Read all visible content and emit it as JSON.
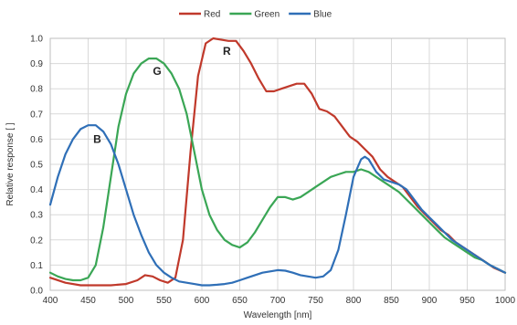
{
  "chart_data": {
    "type": "line",
    "title": "",
    "xlabel": "Wavelength [nm]",
    "ylabel": "Relative response [ ]",
    "xlim": [
      400,
      1000
    ],
    "ylim": [
      0,
      1.0
    ],
    "xticks": [
      "400",
      "450",
      "500",
      "550",
      "600",
      "650",
      "700",
      "750",
      "800",
      "850",
      "900",
      "950",
      "1000"
    ],
    "yticks": [
      "0.0",
      "0.1",
      "0.2",
      "0.3",
      "0.4",
      "0.5",
      "0.6",
      "0.7",
      "0.8",
      "0.9",
      "1.0"
    ],
    "grid": true,
    "legend_position": "top-center",
    "series": [
      {
        "name": "Red",
        "color": "#c0392b",
        "points": [
          [
            400,
            0.05
          ],
          [
            420,
            0.03
          ],
          [
            440,
            0.02
          ],
          [
            460,
            0.02
          ],
          [
            480,
            0.02
          ],
          [
            500,
            0.025
          ],
          [
            515,
            0.04
          ],
          [
            525,
            0.06
          ],
          [
            535,
            0.055
          ],
          [
            545,
            0.04
          ],
          [
            555,
            0.03
          ],
          [
            565,
            0.05
          ],
          [
            575,
            0.2
          ],
          [
            585,
            0.55
          ],
          [
            595,
            0.85
          ],
          [
            605,
            0.98
          ],
          [
            615,
            1.0
          ],
          [
            625,
            0.995
          ],
          [
            635,
            0.99
          ],
          [
            645,
            0.99
          ],
          [
            655,
            0.95
          ],
          [
            665,
            0.9
          ],
          [
            675,
            0.84
          ],
          [
            685,
            0.79
          ],
          [
            695,
            0.79
          ],
          [
            705,
            0.8
          ],
          [
            715,
            0.81
          ],
          [
            725,
            0.82
          ],
          [
            735,
            0.82
          ],
          [
            745,
            0.78
          ],
          [
            755,
            0.72
          ],
          [
            765,
            0.71
          ],
          [
            775,
            0.69
          ],
          [
            785,
            0.65
          ],
          [
            795,
            0.61
          ],
          [
            805,
            0.59
          ],
          [
            815,
            0.56
          ],
          [
            825,
            0.53
          ],
          [
            835,
            0.48
          ],
          [
            845,
            0.45
          ],
          [
            855,
            0.43
          ],
          [
            865,
            0.41
          ],
          [
            875,
            0.37
          ],
          [
            885,
            0.33
          ],
          [
            895,
            0.3
          ],
          [
            905,
            0.27
          ],
          [
            915,
            0.24
          ],
          [
            925,
            0.22
          ],
          [
            935,
            0.19
          ],
          [
            945,
            0.17
          ],
          [
            955,
            0.15
          ],
          [
            965,
            0.13
          ],
          [
            975,
            0.11
          ],
          [
            985,
            0.09
          ],
          [
            1000,
            0.07
          ]
        ]
      },
      {
        "name": "Green",
        "color": "#3aa655",
        "points": [
          [
            400,
            0.07
          ],
          [
            410,
            0.055
          ],
          [
            420,
            0.045
          ],
          [
            430,
            0.04
          ],
          [
            440,
            0.04
          ],
          [
            450,
            0.05
          ],
          [
            460,
            0.1
          ],
          [
            470,
            0.25
          ],
          [
            480,
            0.45
          ],
          [
            490,
            0.65
          ],
          [
            500,
            0.78
          ],
          [
            510,
            0.86
          ],
          [
            520,
            0.9
          ],
          [
            530,
            0.92
          ],
          [
            540,
            0.92
          ],
          [
            550,
            0.9
          ],
          [
            560,
            0.86
          ],
          [
            570,
            0.8
          ],
          [
            580,
            0.7
          ],
          [
            590,
            0.55
          ],
          [
            600,
            0.4
          ],
          [
            610,
            0.3
          ],
          [
            620,
            0.24
          ],
          [
            630,
            0.2
          ],
          [
            640,
            0.18
          ],
          [
            650,
            0.17
          ],
          [
            660,
            0.19
          ],
          [
            670,
            0.23
          ],
          [
            680,
            0.28
          ],
          [
            690,
            0.33
          ],
          [
            700,
            0.37
          ],
          [
            710,
            0.37
          ],
          [
            720,
            0.36
          ],
          [
            730,
            0.37
          ],
          [
            740,
            0.39
          ],
          [
            750,
            0.41
          ],
          [
            760,
            0.43
          ],
          [
            770,
            0.45
          ],
          [
            780,
            0.46
          ],
          [
            790,
            0.47
          ],
          [
            800,
            0.47
          ],
          [
            810,
            0.48
          ],
          [
            820,
            0.47
          ],
          [
            830,
            0.45
          ],
          [
            840,
            0.43
          ],
          [
            850,
            0.41
          ],
          [
            860,
            0.39
          ],
          [
            870,
            0.36
          ],
          [
            880,
            0.33
          ],
          [
            890,
            0.3
          ],
          [
            900,
            0.27
          ],
          [
            910,
            0.24
          ],
          [
            920,
            0.21
          ],
          [
            930,
            0.19
          ],
          [
            940,
            0.17
          ],
          [
            950,
            0.15
          ],
          [
            960,
            0.13
          ],
          [
            970,
            0.12
          ],
          [
            980,
            0.1
          ],
          [
            990,
            0.085
          ],
          [
            1000,
            0.07
          ]
        ]
      },
      {
        "name": "Blue",
        "color": "#2f6fb7",
        "points": [
          [
            400,
            0.34
          ],
          [
            410,
            0.45
          ],
          [
            420,
            0.54
          ],
          [
            430,
            0.6
          ],
          [
            440,
            0.64
          ],
          [
            450,
            0.655
          ],
          [
            460,
            0.655
          ],
          [
            470,
            0.63
          ],
          [
            480,
            0.58
          ],
          [
            490,
            0.5
          ],
          [
            500,
            0.4
          ],
          [
            510,
            0.3
          ],
          [
            520,
            0.22
          ],
          [
            530,
            0.15
          ],
          [
            540,
            0.1
          ],
          [
            550,
            0.07
          ],
          [
            560,
            0.05
          ],
          [
            570,
            0.035
          ],
          [
            580,
            0.03
          ],
          [
            590,
            0.025
          ],
          [
            600,
            0.02
          ],
          [
            610,
            0.02
          ],
          [
            620,
            0.022
          ],
          [
            630,
            0.025
          ],
          [
            640,
            0.03
          ],
          [
            650,
            0.04
          ],
          [
            660,
            0.05
          ],
          [
            670,
            0.06
          ],
          [
            680,
            0.07
          ],
          [
            690,
            0.075
          ],
          [
            700,
            0.08
          ],
          [
            710,
            0.078
          ],
          [
            720,
            0.07
          ],
          [
            730,
            0.06
          ],
          [
            740,
            0.055
          ],
          [
            750,
            0.05
          ],
          [
            760,
            0.055
          ],
          [
            770,
            0.08
          ],
          [
            780,
            0.16
          ],
          [
            790,
            0.3
          ],
          [
            800,
            0.45
          ],
          [
            810,
            0.52
          ],
          [
            815,
            0.53
          ],
          [
            820,
            0.52
          ],
          [
            830,
            0.47
          ],
          [
            840,
            0.44
          ],
          [
            850,
            0.43
          ],
          [
            860,
            0.42
          ],
          [
            870,
            0.4
          ],
          [
            880,
            0.36
          ],
          [
            890,
            0.32
          ],
          [
            900,
            0.29
          ],
          [
            910,
            0.26
          ],
          [
            920,
            0.23
          ],
          [
            930,
            0.2
          ],
          [
            940,
            0.18
          ],
          [
            950,
            0.16
          ],
          [
            960,
            0.14
          ],
          [
            970,
            0.12
          ],
          [
            980,
            0.1
          ],
          [
            990,
            0.085
          ],
          [
            1000,
            0.07
          ]
        ]
      }
    ],
    "annotations": [
      {
        "text": "B",
        "x": 462,
        "y": 0.6
      },
      {
        "text": "G",
        "x": 541,
        "y": 0.87
      },
      {
        "text": "R",
        "x": 633,
        "y": 0.95
      }
    ]
  }
}
